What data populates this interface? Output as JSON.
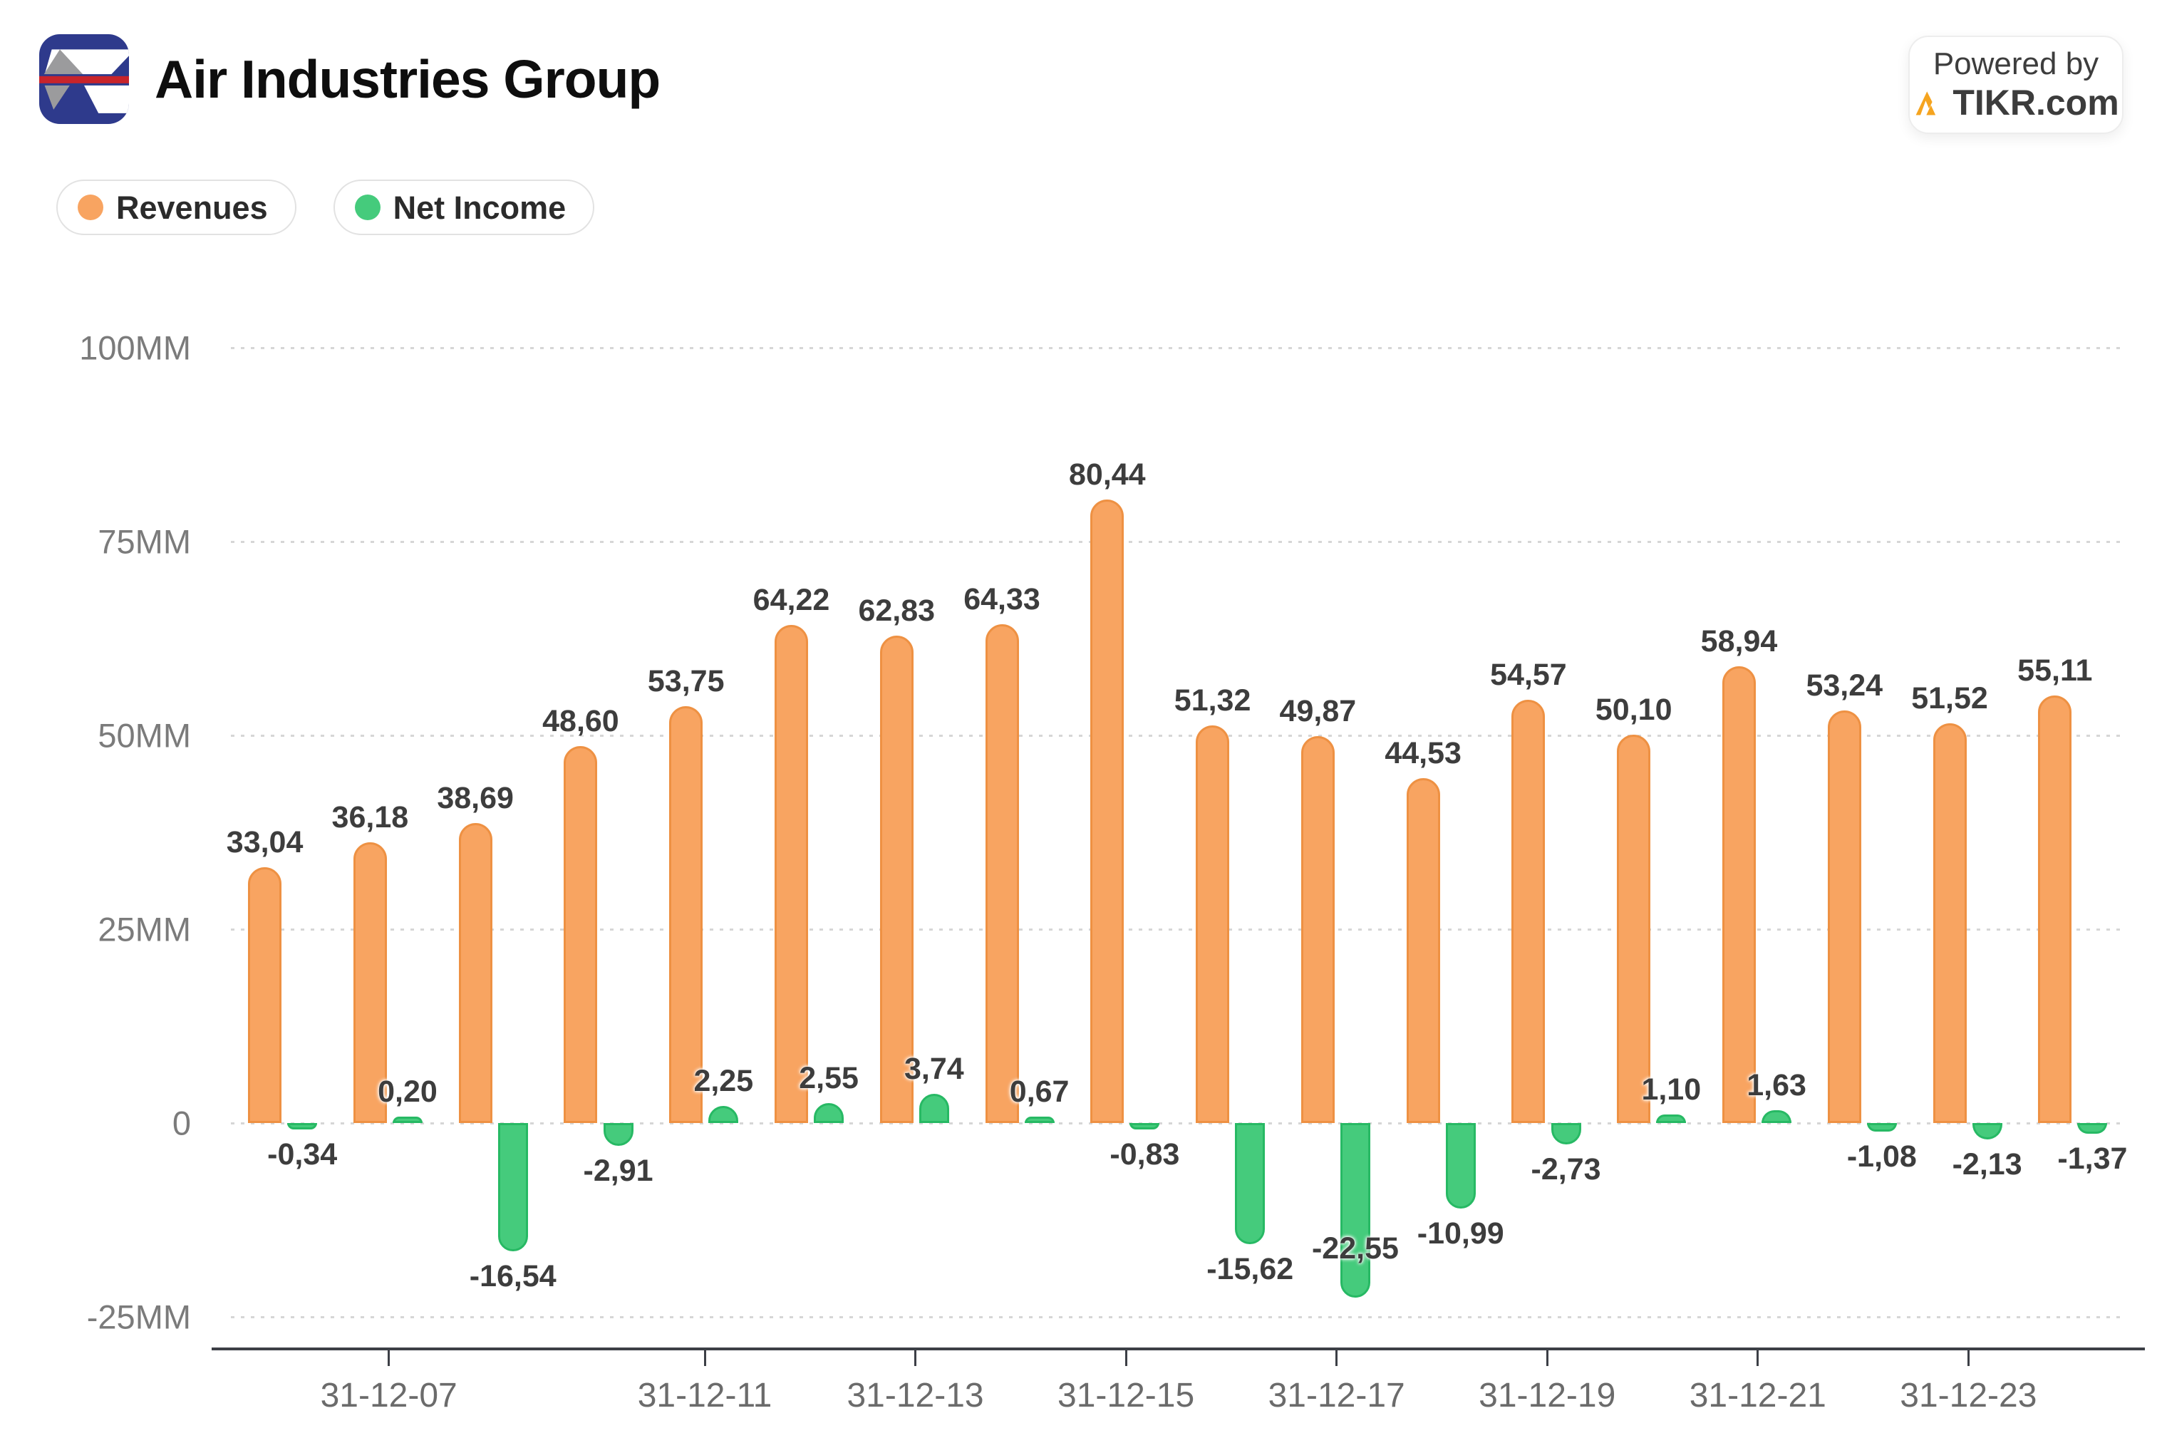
{
  "header": {
    "title": "Air Industries Group",
    "powered_by": {
      "line1": "Powered by",
      "line2": "TIKR.com"
    }
  },
  "legend": {
    "items": [
      {
        "label": "Revenues",
        "color": "#F8A461"
      },
      {
        "label": "Net Income",
        "color": "#45CB7C"
      }
    ]
  },
  "chart_data": {
    "type": "bar",
    "n_groups": 18,
    "series": [
      {
        "name": "Revenues",
        "color": "#F8A461",
        "border_color": "#EE9143",
        "values": [
          33.04,
          36.18,
          38.69,
          48.6,
          53.75,
          64.22,
          62.83,
          64.33,
          80.44,
          51.32,
          49.87,
          44.53,
          54.57,
          50.1,
          58.94,
          53.24,
          51.52,
          55.11
        ],
        "labels": [
          "33,04",
          "36,18",
          "38,69",
          "48,60",
          "53,75",
          "64,22",
          "62,83",
          "64,33",
          "80,44",
          "51,32",
          "49,87",
          "44,53",
          "54,57",
          "50,10",
          "58,94",
          "53,24",
          "51,52",
          "55,11"
        ]
      },
      {
        "name": "Net Income",
        "color": "#45CB7C",
        "border_color": "#27B964",
        "values": [
          -0.34,
          0.2,
          -16.54,
          -2.91,
          2.25,
          2.55,
          3.74,
          0.67,
          -0.83,
          -15.62,
          -22.55,
          -10.99,
          -2.73,
          1.1,
          1.63,
          -1.08,
          -2.13,
          -1.37
        ],
        "labels": [
          "-0,34",
          "0,20",
          "-16,54",
          "-2,91",
          "2,25",
          "2,55",
          "3,74",
          "0,67",
          "-0,83",
          "-15,62",
          "-22,55",
          "-10,99",
          "-2,73",
          "1,10",
          "1,63",
          "-1,08",
          "-2,13",
          "-1,37"
        ]
      }
    ],
    "y_axis": {
      "tick_labels": [
        "100MM",
        "75MM",
        "50MM",
        "25MM",
        "0",
        "-25MM"
      ],
      "tick_values": [
        100,
        75,
        50,
        25,
        0,
        -25
      ],
      "grid_style": "dotted"
    },
    "x_axis": {
      "tick_labels": [
        {
          "text": "31-12-07",
          "slot": 1
        },
        {
          "text": "31-12-11",
          "slot": 4
        },
        {
          "text": "31-12-13",
          "slot": 6
        },
        {
          "text": "31-12-15",
          "slot": 8
        },
        {
          "text": "31-12-17",
          "slot": 10
        },
        {
          "text": "31-12-19",
          "slot": 12
        },
        {
          "text": "31-12-21",
          "slot": 14
        },
        {
          "text": "31-12-23",
          "slot": 16
        }
      ]
    },
    "ylim": [
      -25,
      100
    ],
    "legend_position": "top-left",
    "grid": true
  }
}
